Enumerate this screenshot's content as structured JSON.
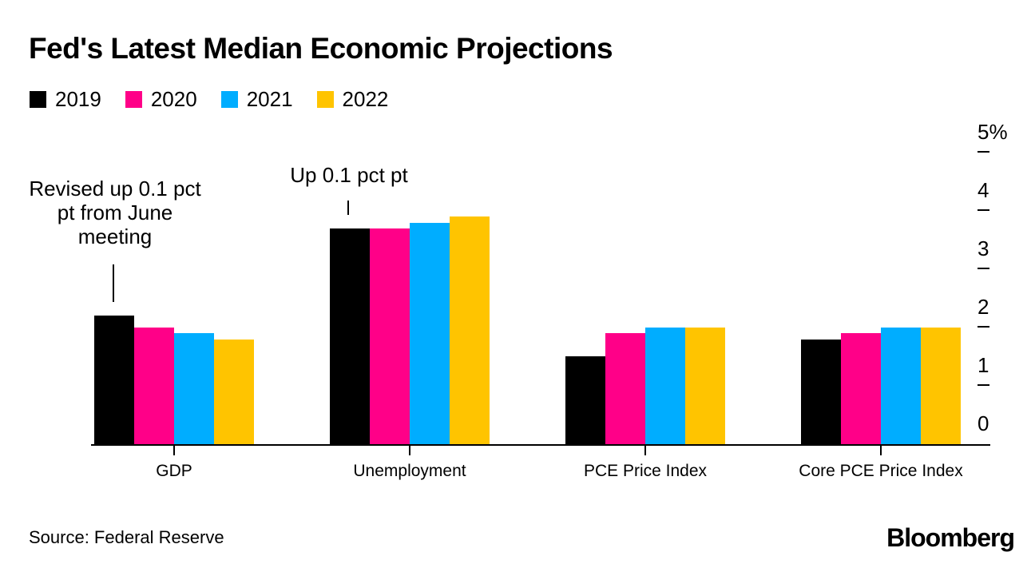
{
  "title": "Fed's Latest Median Economic Projections",
  "chart_data": {
    "type": "bar",
    "categories": [
      "GDP",
      "Unemployment",
      "PCE Price Index",
      "Core PCE Price Index"
    ],
    "series": [
      {
        "name": "2019",
        "color": "#000000",
        "values": [
          2.2,
          3.7,
          1.5,
          1.8
        ]
      },
      {
        "name": "2020",
        "color": "#ff0088",
        "values": [
          2.0,
          3.7,
          1.9,
          1.9
        ]
      },
      {
        "name": "2021",
        "color": "#00adff",
        "values": [
          1.9,
          3.8,
          2.0,
          2.0
        ]
      },
      {
        "name": "2022",
        "color": "#ffc400",
        "values": [
          1.8,
          3.9,
          2.0,
          2.0
        ]
      }
    ],
    "ylim": [
      0,
      5
    ],
    "y_ticks": [
      {
        "value": 0,
        "label": "0"
      },
      {
        "value": 1,
        "label": "1"
      },
      {
        "value": 2,
        "label": "2"
      },
      {
        "value": 3,
        "label": "3"
      },
      {
        "value": 4,
        "label": "4"
      },
      {
        "value": 5,
        "label": "5%"
      }
    ],
    "grid": "off",
    "legend_position": "top-left",
    "annotations": [
      {
        "text": "Revised up 0.1 pct pt from June meeting",
        "target_category": "GDP",
        "target_series": "2019"
      },
      {
        "text": "Up 0.1 pct pt",
        "target_category": "Unemployment",
        "target_series": "2019"
      }
    ]
  },
  "footer": {
    "source": "Source: Federal Reserve",
    "brand": "Bloomberg"
  }
}
